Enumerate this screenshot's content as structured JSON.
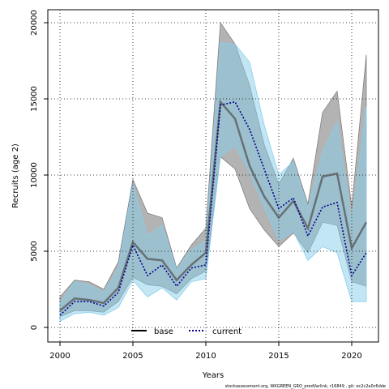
{
  "chart_data": {
    "type": "line",
    "xlabel": "Years",
    "ylabel": "Recruits (age 2)",
    "xlim": [
      2000,
      2021
    ],
    "ylim": [
      0,
      20000
    ],
    "x_ticks": [
      2000,
      2005,
      2010,
      2015,
      2020
    ],
    "y_ticks": [
      0,
      5000,
      10000,
      15000,
      20000
    ],
    "grid": true,
    "legend_position": "bottom-center",
    "x": [
      2000,
      2001,
      2002,
      2003,
      2004,
      2005,
      2006,
      2007,
      2008,
      2009,
      2010,
      2011,
      2012,
      2013,
      2014,
      2015,
      2016,
      2017,
      2018,
      2019,
      2020,
      2021
    ],
    "series": [
      {
        "name": "base",
        "line_style": "solid",
        "color": "#000000",
        "band_color": "#808080",
        "values": [
          1100,
          1900,
          1800,
          1600,
          2600,
          5600,
          4500,
          4400,
          3100,
          4100,
          4900,
          14800,
          13700,
          10600,
          8600,
          7200,
          8300,
          6500,
          9900,
          10100,
          5200,
          6900
        ],
        "lower": [
          700,
          1100,
          1100,
          1000,
          1700,
          3300,
          2800,
          2700,
          2200,
          3200,
          3700,
          11200,
          10400,
          7800,
          6400,
          5300,
          6200,
          4900,
          6900,
          6700,
          3000,
          2700
        ],
        "upper": [
          2000,
          3100,
          3000,
          2500,
          4300,
          9700,
          7500,
          7200,
          3900,
          5400,
          6500,
          20000,
          18600,
          15900,
          12000,
          9400,
          11100,
          8100,
          14100,
          15500,
          7900,
          17900
        ]
      },
      {
        "name": "current",
        "line_style": "dotted",
        "color": "#00008b",
        "band_color": "#87ceeb",
        "values": [
          800,
          1700,
          1700,
          1400,
          2300,
          5400,
          3400,
          4100,
          2700,
          3900,
          4100,
          14600,
          14800,
          13000,
          10400,
          7800,
          8500,
          6000,
          7900,
          8200,
          3400,
          4900
        ],
        "lower": [
          400,
          900,
          1000,
          800,
          1300,
          3100,
          2000,
          2600,
          1800,
          3000,
          3200,
          11200,
          11900,
          10200,
          7900,
          5700,
          6300,
          4400,
          5300,
          4900,
          1700,
          1700
        ],
        "upper": [
          1600,
          3000,
          2800,
          2300,
          3900,
          9400,
          6000,
          6700,
          3800,
          5100,
          5700,
          18700,
          18600,
          17400,
          13300,
          10000,
          10900,
          7800,
          11500,
          13500,
          6900,
          14500
        ]
      }
    ]
  },
  "footer": "stockassessment.org, WKGREEN_GRO_predVarlink, r16849 , git: ec2c2a0c6dde"
}
